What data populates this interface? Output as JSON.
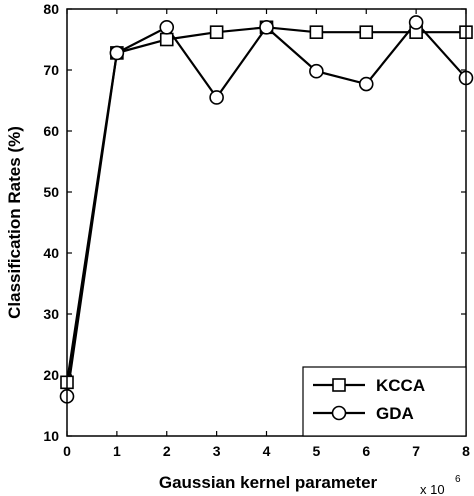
{
  "chart_data": {
    "type": "line",
    "xlabel": "Gaussian kernel parameter",
    "x_multiplier_base": "x 10",
    "x_multiplier_exp": "6",
    "ylabel": "Classification Rates (%)",
    "xlim": [
      0,
      8
    ],
    "ylim": [
      10,
      80
    ],
    "x_ticks": [
      0,
      1,
      2,
      3,
      4,
      5,
      6,
      7,
      8
    ],
    "y_ticks": [
      10,
      20,
      30,
      40,
      50,
      60,
      70,
      80
    ],
    "grid": false,
    "legend_position": "bottom-right",
    "x": [
      0,
      1,
      2,
      3,
      4,
      5,
      6,
      7,
      8
    ],
    "series": [
      {
        "name": "KCCA",
        "marker": "square",
        "values": [
          18.8,
          72.8,
          75.0,
          76.2,
          77.0,
          76.2,
          76.2,
          76.2,
          76.2
        ]
      },
      {
        "name": "GDA",
        "marker": "circle",
        "values": [
          16.5,
          72.8,
          77.0,
          65.5,
          77.0,
          69.8,
          67.7,
          77.8,
          68.7
        ]
      }
    ],
    "line_color": "#000000"
  }
}
